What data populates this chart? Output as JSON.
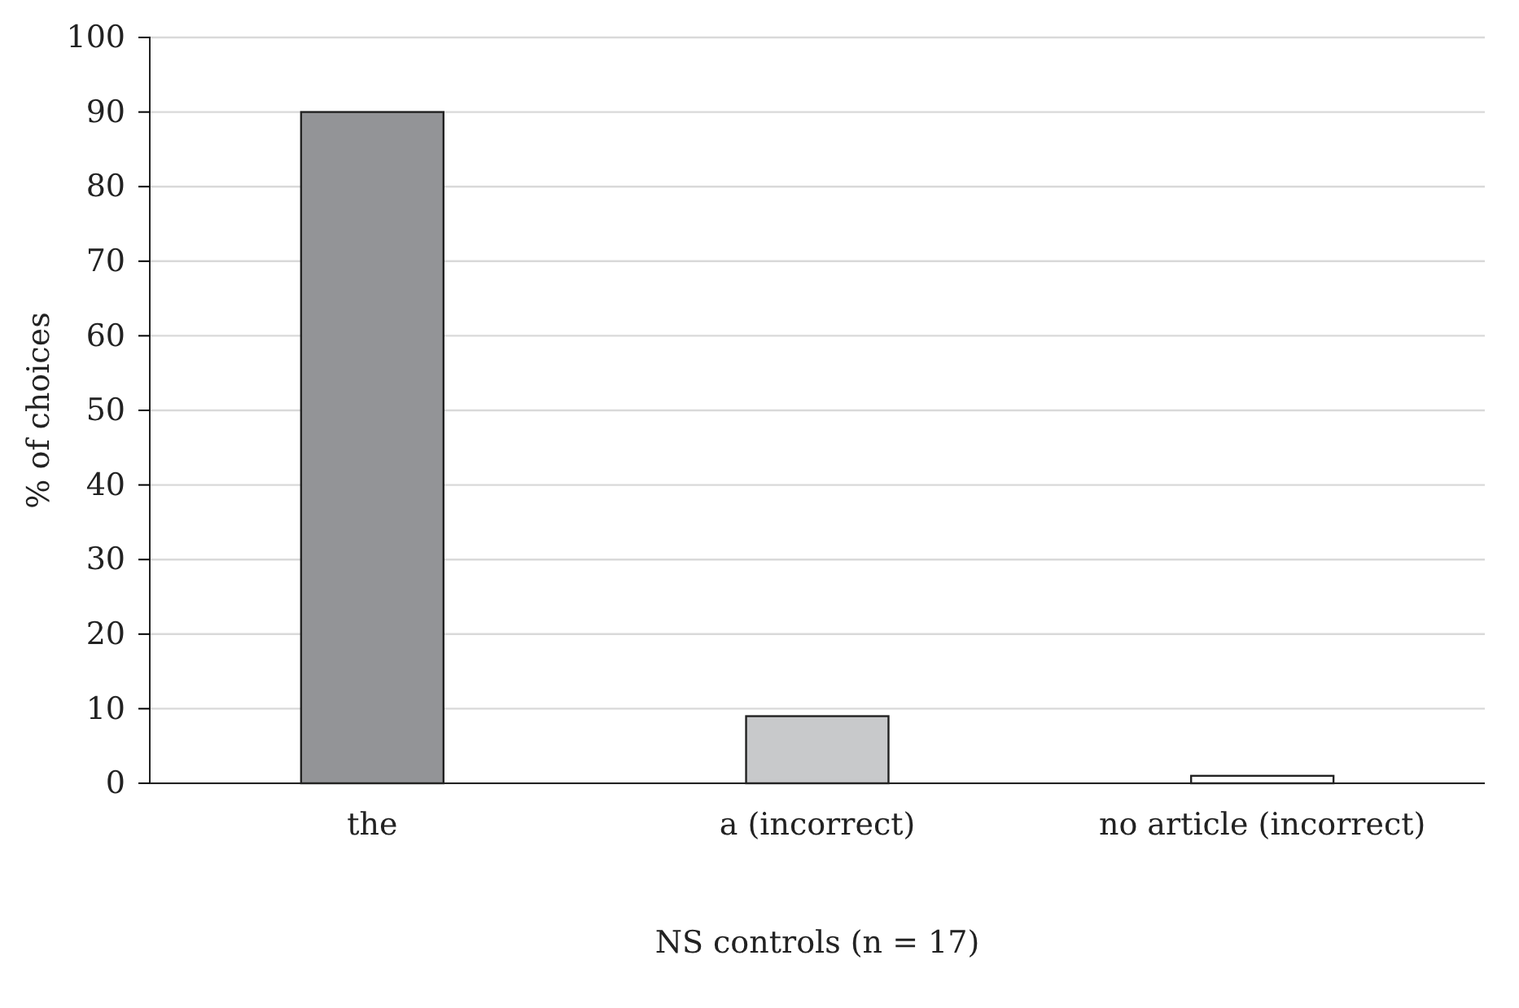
{
  "chart_data": {
    "type": "bar",
    "xlabel": "NS controls (n = 17)",
    "ylabel": "% of choices",
    "categories": [
      "the",
      "a (incorrect)",
      "no article (incorrect)"
    ],
    "values": [
      90,
      9,
      1
    ],
    "colors": [
      "#939497",
      "#c8c9cb",
      "#ffffff"
    ],
    "ylim": [
      0,
      100
    ],
    "yticks": [
      0,
      10,
      20,
      30,
      40,
      50,
      60,
      70,
      80,
      90,
      100
    ],
    "grid": "y"
  }
}
